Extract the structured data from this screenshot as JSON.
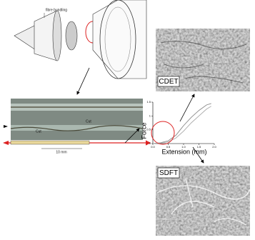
{
  "labels": {
    "diagram": "fibre bundling",
    "cut_1": "Cut",
    "cut_2": "Cut",
    "scale": "10 mm",
    "top_image": "CDET",
    "bottom_image": "SDFT"
  },
  "chart_data": {
    "type": "line",
    "xlabel": "Extension (mm)",
    "ylabel": "Force",
    "x": [
      0,
      0.25,
      0.5,
      0.75,
      1,
      1.25,
      1.5,
      1.75,
      1.9
    ],
    "series": [
      {
        "color": "#888888",
        "values": [
          0,
          0.03,
          0.1,
          0.3,
          0.65,
          0.95,
          1.2,
          1.4,
          1.45
        ]
      },
      {
        "color": "#aaaaaa",
        "values": [
          0,
          0.02,
          0.06,
          0.2,
          0.45,
          0.75,
          1.0,
          1.25,
          1.35
        ]
      }
    ],
    "xlim": [
      0,
      2
    ],
    "ylim": [
      0,
      1.5
    ],
    "xticks": [
      {
        "value": 0,
        "label": "0.0"
      },
      {
        "value": 0.5,
        "label": "0.5"
      },
      {
        "value": 1,
        "label": "1.0"
      },
      {
        "value": 1.5,
        "label": "1.5"
      },
      {
        "value": 2,
        "label": "2.0"
      }
    ],
    "yticks": [
      0,
      0.5,
      1,
      1.5
    ]
  }
}
